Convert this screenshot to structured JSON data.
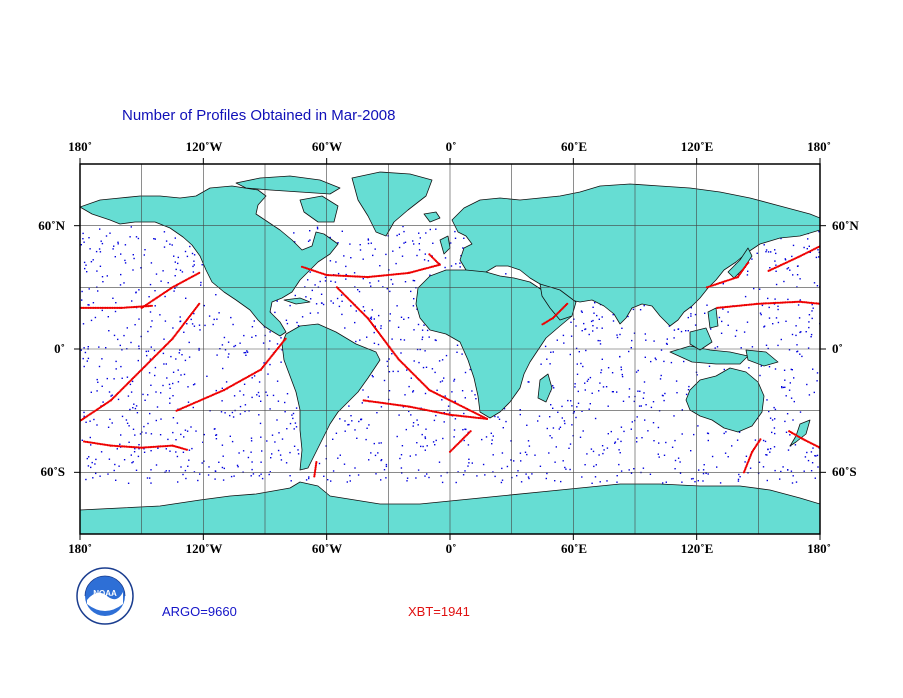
{
  "title": "Number of Profiles Obtained in Mar-2008",
  "longitude_labels": [
    "180˚",
    "120˚W",
    "60˚W",
    "0˚",
    "60˚E",
    "120˚E",
    "180˚"
  ],
  "longitude_values": [
    -180,
    -120,
    -60,
    0,
    60,
    120,
    180
  ],
  "latitude_labels": [
    "60˚N",
    "0˚",
    "60˚S"
  ],
  "latitude_values": [
    60,
    0,
    -60
  ],
  "map_extent": {
    "lon": [
      -180,
      180
    ],
    "lat": [
      -90,
      90
    ]
  },
  "gridline_step_degrees": 30,
  "counts": {
    "argo": "ARGO=9660",
    "xbt": "XBT=1941"
  },
  "colors": {
    "land": "#66ddd3",
    "coastline": "#111111",
    "argo_points": "#0000dd",
    "xbt_points": "#ee0000",
    "title": "#1010b8",
    "grid": "#444444"
  },
  "logo": {
    "name": "noaa-logo",
    "text": "NOAA"
  },
  "xbt_lines": [
    [
      [
        -178,
        -45
      ],
      [
        -165,
        -47
      ],
      [
        -150,
        -48
      ],
      [
        -135,
        -47
      ],
      [
        -128,
        -49
      ]
    ],
    [
      [
        -180,
        -35
      ],
      [
        -165,
        -25
      ],
      [
        -150,
        -10
      ],
      [
        -135,
        5
      ],
      [
        -122,
        22
      ]
    ],
    [
      [
        -150,
        20
      ],
      [
        -135,
        30
      ],
      [
        -122,
        37
      ]
    ],
    [
      [
        -180,
        20
      ],
      [
        -160,
        20
      ],
      [
        -145,
        21
      ]
    ],
    [
      [
        -133,
        -30
      ],
      [
        -110,
        -20
      ],
      [
        -92,
        -10
      ],
      [
        -80,
        5
      ]
    ],
    [
      [
        -42,
        -25
      ],
      [
        -20,
        -28
      ],
      [
        0,
        -32
      ],
      [
        18,
        -34
      ]
    ],
    [
      [
        -72,
        40
      ],
      [
        -60,
        36
      ],
      [
        -40,
        35
      ],
      [
        -20,
        37
      ],
      [
        -5,
        41
      ],
      [
        -10,
        46
      ]
    ],
    [
      [
        -55,
        30
      ],
      [
        -40,
        15
      ],
      [
        -25,
        -5
      ],
      [
        -10,
        -20
      ],
      [
        18,
        -34
      ]
    ],
    [
      [
        -65,
        -55
      ],
      [
        -66,
        -62
      ]
    ],
    [
      [
        0,
        -50
      ],
      [
        5,
        -45
      ],
      [
        10,
        -40
      ]
    ],
    [
      [
        45,
        12
      ],
      [
        50,
        15
      ],
      [
        57,
        22
      ]
    ],
    [
      [
        125,
        30
      ],
      [
        140,
        35
      ],
      [
        145,
        42
      ]
    ],
    [
      [
        130,
        20
      ],
      [
        150,
        22
      ],
      [
        170,
        23
      ],
      [
        180,
        22
      ]
    ],
    [
      [
        143,
        -60
      ],
      [
        147,
        -50
      ],
      [
        151,
        -44
      ]
    ],
    [
      [
        165,
        -40
      ],
      [
        172,
        -44
      ],
      [
        180,
        -48
      ]
    ],
    [
      [
        155,
        38
      ],
      [
        170,
        45
      ],
      [
        180,
        50
      ]
    ]
  ]
}
